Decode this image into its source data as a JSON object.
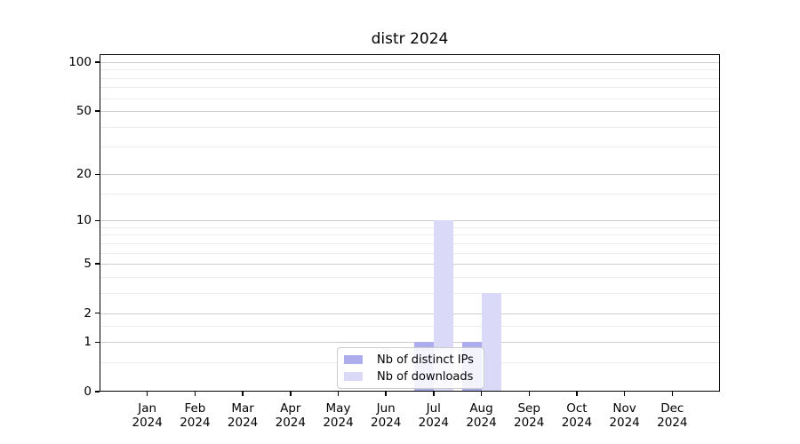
{
  "figure": {
    "title": "distr 2024"
  },
  "chart_data": {
    "type": "bar",
    "title": "distr 2024",
    "categories": [
      "Jan",
      "Feb",
      "Mar",
      "Apr",
      "May",
      "Jun",
      "Jul",
      "Aug",
      "Sep",
      "Oct",
      "Nov",
      "Dec"
    ],
    "category_year_label": "2024",
    "series": [
      {
        "name": "Nb of distinct IPs",
        "color": "#adadee",
        "values": [
          0,
          0,
          0,
          0,
          0,
          0,
          1,
          1,
          0,
          0,
          0,
          0
        ]
      },
      {
        "name": "Nb of downloads",
        "color": "#dadaf8",
        "values": [
          0,
          0,
          0,
          0,
          0,
          0,
          10,
          3,
          0,
          0,
          0,
          0
        ]
      }
    ],
    "xlabel": "",
    "ylabel": "",
    "yscale": "log1p",
    "ylim": [
      0,
      112
    ],
    "yticks": [
      0,
      1,
      2,
      5,
      10,
      20,
      50,
      100
    ],
    "minor_gridlines": [
      0.5,
      1.5,
      3,
      4,
      6,
      7,
      8,
      9,
      15,
      30,
      40,
      60,
      70,
      80,
      90
    ],
    "grid": true,
    "legend": {
      "position": "lower center",
      "entries": [
        "Nb of distinct IPs",
        "Nb of downloads"
      ]
    },
    "colors": {
      "major_grid": "#cccccc",
      "minor_grid": "#ededed",
      "spine": "#000000",
      "legend_border": "#cccccc"
    }
  }
}
